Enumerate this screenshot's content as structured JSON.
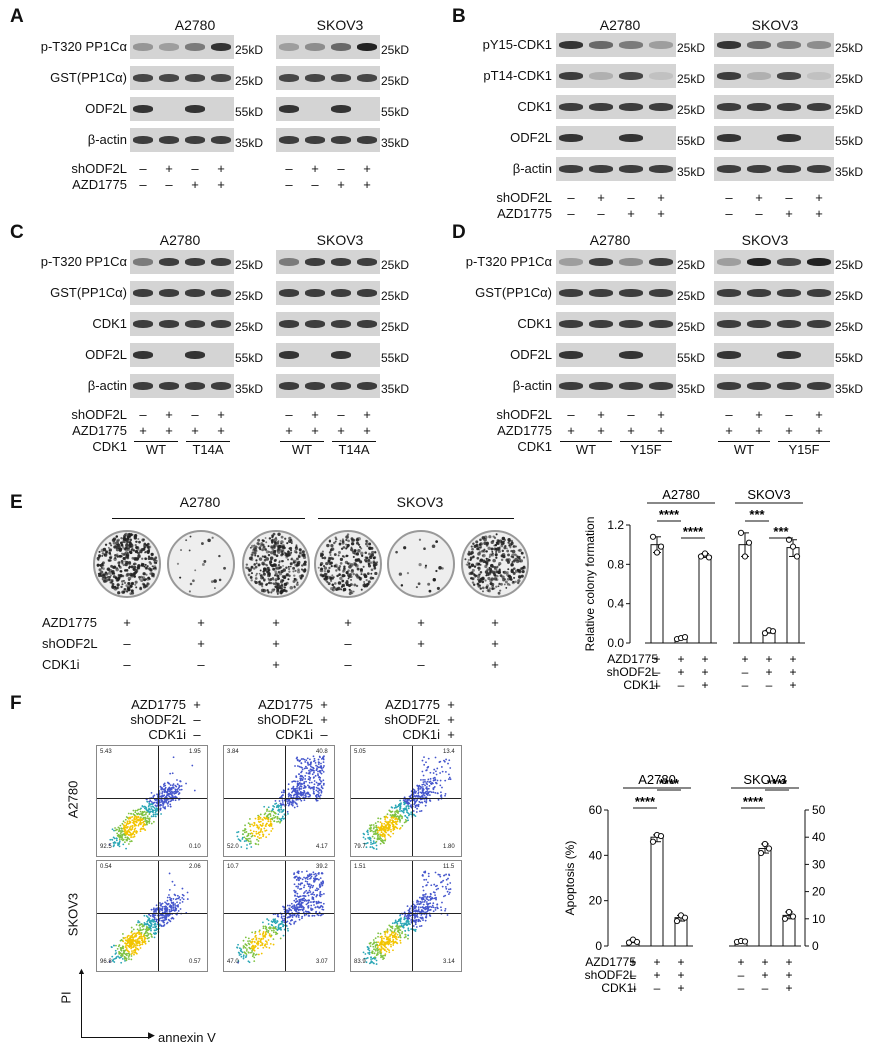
{
  "panels": {
    "A": {
      "label": "A",
      "cells": [
        "A2780",
        "SKOV3"
      ],
      "rows": [
        "p-T320 PP1Cα",
        "GST(PP1Cα)",
        "ODF2L",
        "β-actin"
      ],
      "mw": [
        "25kD",
        "25kD",
        "55kD",
        "35kD"
      ],
      "cond": [
        {
          "name": "shODF2L",
          "signs": [
            "–",
            "+",
            "–",
            "+"
          ]
        },
        {
          "name": "AZD1775",
          "signs": [
            "–",
            "–",
            "+",
            "+"
          ]
        }
      ]
    },
    "B": {
      "label": "B",
      "cells": [
        "A2780",
        "SKOV3"
      ],
      "rows": [
        "pY15-CDK1",
        "pT14-CDK1",
        "CDK1",
        "ODF2L",
        "β-actin"
      ],
      "mw": [
        "25kD",
        "25kD",
        "25kD",
        "55kD",
        "35kD"
      ],
      "cond": [
        {
          "name": "shODF2L",
          "signs": [
            "–",
            "+",
            "–",
            "+"
          ]
        },
        {
          "name": "AZD1775",
          "signs": [
            "–",
            "–",
            "+",
            "+"
          ]
        }
      ]
    },
    "C": {
      "label": "C",
      "cells": [
        "A2780",
        "SKOV3"
      ],
      "rows": [
        "p-T320 PP1Cα",
        "GST(PP1Cα)",
        "CDK1",
        "ODF2L",
        "β-actin"
      ],
      "mw": [
        "25kD",
        "25kD",
        "25kD",
        "55kD",
        "35kD"
      ],
      "cond": [
        {
          "name": "shODF2L",
          "signs": [
            "–",
            "+",
            "–",
            "+"
          ]
        },
        {
          "name": "AZD1775",
          "signs": [
            "+",
            "+",
            "+",
            "+"
          ]
        }
      ],
      "cdk_label": "CDK1",
      "groups": [
        "WT",
        "T14A"
      ]
    },
    "D": {
      "label": "D",
      "cells": [
        "A2780",
        "SKOV3"
      ],
      "rows": [
        "p-T320 PP1Cα",
        "GST(PP1Cα)",
        "CDK1",
        "ODF2L",
        "β-actin"
      ],
      "mw": [
        "25kD",
        "25kD",
        "25kD",
        "55kD",
        "35kD"
      ],
      "cond": [
        {
          "name": "shODF2L",
          "signs": [
            "–",
            "+",
            "–",
            "+"
          ]
        },
        {
          "name": "AZD1775",
          "signs": [
            "+",
            "+",
            "+",
            "+"
          ]
        }
      ],
      "cdk_label": "CDK1",
      "groups": [
        "WT",
        "Y15F"
      ]
    },
    "E": {
      "label": "E",
      "cells": [
        "A2780",
        "SKOV3"
      ],
      "cond": [
        {
          "name": "AZD1775",
          "signs": [
            "+",
            "+",
            "+"
          ]
        },
        {
          "name": "shODF2L",
          "signs": [
            "–",
            "+",
            "+"
          ]
        },
        {
          "name": "CDK1i",
          "signs": [
            "–",
            "–",
            "+"
          ]
        }
      ]
    },
    "F": {
      "label": "F",
      "row_labels": [
        "A2780",
        "SKOV3"
      ],
      "y_axis": "PI",
      "x_axis": "annexin V",
      "columns": [
        {
          "cond": [
            [
              "AZD1775",
              "+"
            ],
            [
              "shODF2L",
              "–"
            ],
            [
              "CDK1i",
              "–"
            ]
          ]
        },
        {
          "cond": [
            [
              "AZD1775",
              "+"
            ],
            [
              "shODF2L",
              "+"
            ],
            [
              "CDK1i",
              "–"
            ]
          ]
        },
        {
          "cond": [
            [
              "AZD1775",
              "+"
            ],
            [
              "shODF2L",
              "+"
            ],
            [
              "CDK1i",
              "+"
            ]
          ]
        }
      ],
      "quadrants": [
        [
          [
            "5.43",
            "1.95",
            "92.5",
            "0.10"
          ],
          [
            "3.84",
            "40.8",
            "52.0",
            "4.17"
          ],
          [
            "5.05",
            "13.4",
            "79.7",
            "1.80"
          ]
        ],
        [
          [
            "0.54",
            "2.06",
            "96.8",
            "0.57"
          ],
          [
            "10.7",
            "39.2",
            "47.0",
            "3.07"
          ],
          [
            "1.51",
            "11.5",
            "83.9",
            "3.14"
          ]
        ]
      ]
    }
  },
  "chart_data": [
    {
      "type": "bar",
      "ylabel": "Relative colony formation",
      "ylim": [
        0,
        1.2
      ],
      "yticks": [
        "0.0",
        "0.4",
        "0.8",
        "1.2"
      ],
      "groups": [
        "A2780",
        "SKOV3"
      ],
      "series": [
        {
          "group": "A2780",
          "values": [
            1.0,
            0.05,
            0.89
          ],
          "points": [
            [
              1.08,
              0.92,
              0.98
            ],
            [
              0.04,
              0.05,
              0.06
            ],
            [
              0.88,
              0.91,
              0.87
            ]
          ]
        },
        {
          "group": "SKOV3",
          "values": [
            1.0,
            0.12,
            0.97
          ],
          "points": [
            [
              1.12,
              0.88,
              1.02
            ],
            [
              0.1,
              0.13,
              0.12
            ],
            [
              1.05,
              0.98,
              0.88
            ]
          ]
        }
      ],
      "significance": [
        {
          "group": "A2780",
          "label": "****",
          "from": 0,
          "to": 1
        },
        {
          "group": "A2780",
          "label": "****",
          "from": 1,
          "to": 2
        },
        {
          "group": "SKOV3",
          "label": "***",
          "from": 0,
          "to": 1
        },
        {
          "group": "SKOV3",
          "label": "***",
          "from": 1,
          "to": 2
        }
      ],
      "cond": [
        {
          "name": "AZD1775",
          "signs": [
            "+",
            "+",
            "+",
            "+",
            "+",
            "+"
          ]
        },
        {
          "name": "shODF2L",
          "signs": [
            "–",
            "+",
            "+",
            "–",
            "+",
            "+"
          ]
        },
        {
          "name": "CDK1i",
          "signs": [
            "–",
            "–",
            "+",
            "–",
            "–",
            "+"
          ]
        }
      ]
    },
    {
      "type": "bar",
      "ylabel": "Apoptosis (%)",
      "ylim": [
        0,
        60
      ],
      "yticks": [
        "0",
        "20",
        "40",
        "60"
      ],
      "ylim_right": [
        0,
        50
      ],
      "yticks_right": [
        "0",
        "10",
        "20",
        "30",
        "40",
        "50"
      ],
      "groups": [
        "A2780",
        "SKOV3"
      ],
      "series": [
        {
          "group": "A2780",
          "values": [
            2.0,
            48.0,
            12.5
          ],
          "points": [
            [
              1.5,
              2.8,
              1.8
            ],
            [
              46,
              49,
              48.5
            ],
            [
              11,
              13.5,
              12.5
            ]
          ]
        },
        {
          "group": "SKOV3",
          "values": [
            2.0,
            43.0,
            13.5
          ],
          "points": [
            [
              1.8,
              2.2,
              2.0
            ],
            [
              41,
              45,
              43
            ],
            [
              12,
              15,
              13
            ]
          ]
        }
      ],
      "significance": [
        {
          "group": "A2780",
          "label": "****",
          "from": 0,
          "to": 1
        },
        {
          "group": "A2780",
          "label": "****",
          "from": 1,
          "to": 2
        },
        {
          "group": "SKOV3",
          "label": "****",
          "from": 0,
          "to": 1
        },
        {
          "group": "SKOV3",
          "label": "****",
          "from": 1,
          "to": 2
        }
      ],
      "cond": [
        {
          "name": "AZD1775",
          "signs": [
            "+",
            "+",
            "+",
            "+",
            "+",
            "+"
          ]
        },
        {
          "name": "shODF2L",
          "signs": [
            "–",
            "+",
            "+",
            "–",
            "+",
            "+"
          ]
        },
        {
          "name": "CDK1i",
          "signs": [
            "–",
            "–",
            "+",
            "–",
            "–",
            "+"
          ]
        }
      ]
    }
  ]
}
